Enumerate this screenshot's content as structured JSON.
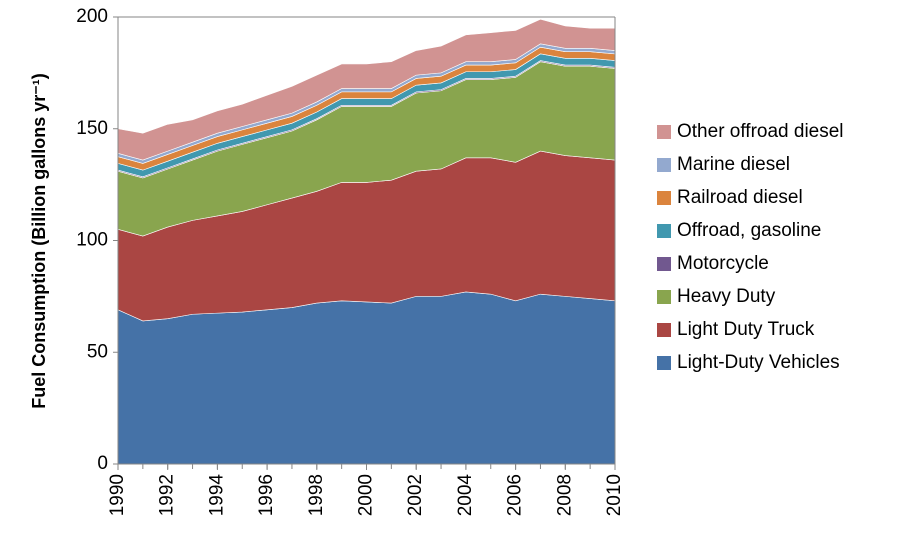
{
  "chart_data": {
    "type": "stacked-area",
    "y_label": "Fuel Consumption (Billion gallons  yr⁻¹)",
    "x": [
      1990,
      1991,
      1992,
      1993,
      1994,
      1995,
      1996,
      1997,
      1998,
      1999,
      2000,
      2001,
      2002,
      2003,
      2004,
      2005,
      2006,
      2007,
      2008,
      2009,
      2010
    ],
    "xlim": [
      1990,
      2010
    ],
    "xticks": [
      1990,
      1992,
      1994,
      1996,
      1998,
      2000,
      2002,
      2004,
      2006,
      2008,
      2010
    ],
    "ylim": [
      0,
      200
    ],
    "yticks": [
      0,
      50,
      100,
      150,
      200
    ],
    "series": [
      {
        "name": "Light-Duty Vehicles",
        "color": "#4572a7",
        "values": [
          69,
          64,
          65,
          67,
          67.5,
          68,
          69,
          70,
          72,
          73,
          72.5,
          72,
          75,
          75,
          77,
          76,
          73,
          76,
          75,
          74,
          73
        ]
      },
      {
        "name": "Light Duty Truck",
        "color": "#aa4643",
        "values": [
          36,
          38,
          41,
          42,
          43.5,
          45,
          47,
          49,
          50,
          53,
          53.5,
          55,
          56,
          57,
          60,
          61,
          62,
          64,
          63,
          63,
          63
        ]
      },
      {
        "name": "Heavy Duty",
        "color": "#89a54e",
        "values": [
          26,
          26,
          26,
          27,
          29,
          30,
          30,
          30,
          32,
          34,
          34,
          33,
          35,
          35,
          35,
          35,
          38,
          40,
          40,
          41,
          41
        ]
      },
      {
        "name": "Motorcycle",
        "color": "#71588f",
        "values": [
          0.5,
          0.5,
          0.5,
          0.5,
          0.5,
          0.5,
          0.5,
          0.5,
          0.5,
          0.5,
          0.5,
          0.5,
          0.5,
          0.5,
          0.5,
          0.5,
          0.5,
          0.5,
          0.5,
          0.5,
          0.5
        ]
      },
      {
        "name": "Offroad, gasoline",
        "color": "#4198af",
        "values": [
          3,
          3,
          3,
          3,
          3,
          3,
          3,
          3,
          3,
          3,
          3,
          3,
          3,
          3,
          3,
          3,
          3,
          3,
          3,
          3,
          3
        ]
      },
      {
        "name": "Railroad diesel",
        "color": "#db843d",
        "values": [
          3,
          3,
          3,
          3,
          3,
          3,
          3,
          3,
          3,
          3,
          3,
          3,
          3,
          3,
          3,
          3,
          3,
          3,
          3,
          3,
          3
        ]
      },
      {
        "name": "Marine diesel",
        "color": "#93a9cf",
        "values": [
          1.5,
          1.5,
          1.5,
          1.5,
          1.5,
          1.5,
          1.5,
          1.5,
          1.5,
          1.5,
          1.5,
          1.5,
          1.5,
          1.5,
          1.5,
          1.5,
          1.5,
          1.5,
          1.5,
          1.5,
          1.5
        ]
      },
      {
        "name": "Other offroad diesel",
        "color": "#d19392",
        "values": [
          11,
          12,
          12,
          10,
          10,
          10,
          11,
          12,
          12,
          11,
          11,
          12,
          11,
          12,
          12,
          13,
          13,
          11,
          10,
          9,
          10
        ]
      }
    ]
  }
}
